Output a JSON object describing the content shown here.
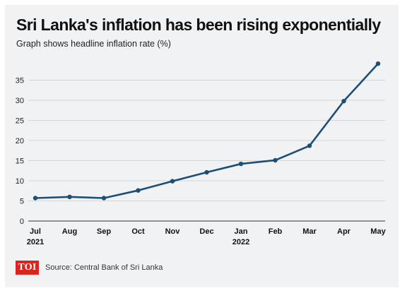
{
  "header": {
    "title": "Sri Lanka's inflation has been rising exponentially",
    "subtitle": "Graph shows headline inflation rate (%)"
  },
  "footer": {
    "logo_text": "TOI",
    "source": "Source: Central Bank of Sri Lanka"
  },
  "colors": {
    "line": "#1d4e74",
    "grid": "#c9ccd1",
    "axis": "#333333",
    "background": "#f1f2f4",
    "logo": "#d7261e"
  },
  "chart_data": {
    "type": "line",
    "title": "Sri Lanka's inflation has been rising exponentially",
    "subtitle": "Graph shows headline inflation rate (%)",
    "xlabel": "",
    "ylabel": "",
    "categories": [
      "Jul",
      "Aug",
      "Sep",
      "Oct",
      "Nov",
      "Dec",
      "Jan",
      "Feb",
      "Mar",
      "Apr",
      "May"
    ],
    "year_labels": [
      "2021",
      "",
      "",
      "",
      "",
      "",
      "2022",
      "",
      "",
      "",
      ""
    ],
    "series": [
      {
        "values": [
          5.7,
          6.0,
          5.7,
          7.6,
          9.9,
          12.1,
          14.2,
          15.1,
          18.7,
          29.8,
          39.1
        ]
      }
    ],
    "yticks": [
      0,
      5,
      10,
      15,
      20,
      25,
      30,
      35
    ],
    "ylim": [
      0,
      40
    ],
    "grid": true
  }
}
